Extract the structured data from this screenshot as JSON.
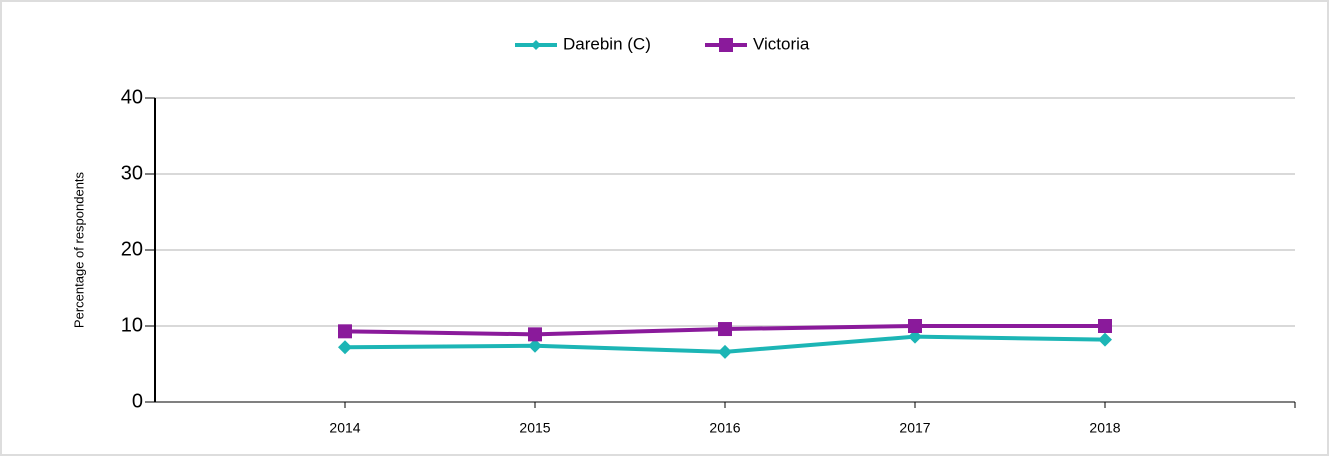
{
  "chart_data": {
    "type": "line",
    "categories": [
      "2014",
      "2015",
      "2016",
      "2017",
      "2018"
    ],
    "y_label": "Percentage of respondents",
    "series": [
      {
        "name": "Darebin (C)",
        "color": "#1cb5b5",
        "marker": "diamond",
        "values": [
          7.2,
          7.4,
          6.6,
          8.6,
          8.2
        ]
      },
      {
        "name": "Victoria",
        "color": "#8a1a9b",
        "marker": "square",
        "values": [
          9.3,
          8.9,
          9.6,
          10.0,
          10.0
        ]
      }
    ],
    "ylim": [
      0,
      40
    ],
    "yticks": [
      0,
      10,
      20,
      30,
      40
    ],
    "grid": true
  }
}
